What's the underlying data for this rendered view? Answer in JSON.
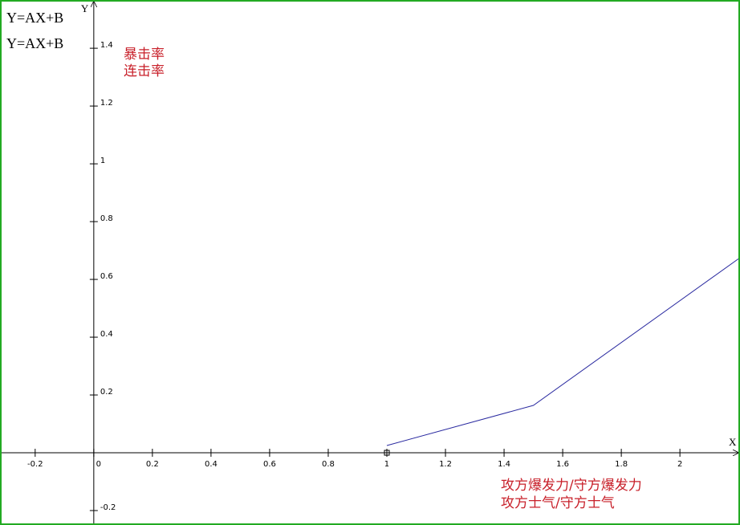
{
  "chart_data": {
    "type": "line",
    "formulas": [
      "Y=AX+B",
      "Y=AX+B"
    ],
    "xlabel": [
      "攻方爆发力/守方爆发力",
      "攻方士气/守方士气"
    ],
    "ylabel": [
      "暴击率",
      "连击率"
    ],
    "xname": "X",
    "yname": "Y",
    "x": [
      1,
      1.5,
      2.205
    ],
    "series": [
      {
        "color": "#2a2aa0",
        "values": [
          0.025,
          0.164,
          0.675
        ]
      }
    ],
    "xlim": [
      -0.32,
      2.205
    ],
    "ylim": [
      -0.25,
      1.567
    ],
    "xticks": [
      -0.2,
      0,
      0.2,
      0.4,
      0.6,
      0.8,
      1,
      1.2,
      1.4,
      1.6,
      1.8,
      2
    ],
    "yticks": [
      -0.2,
      0.2,
      0.4,
      0.6,
      0.8,
      1,
      1.2,
      1.4
    ],
    "border_color": "#22aa22"
  }
}
